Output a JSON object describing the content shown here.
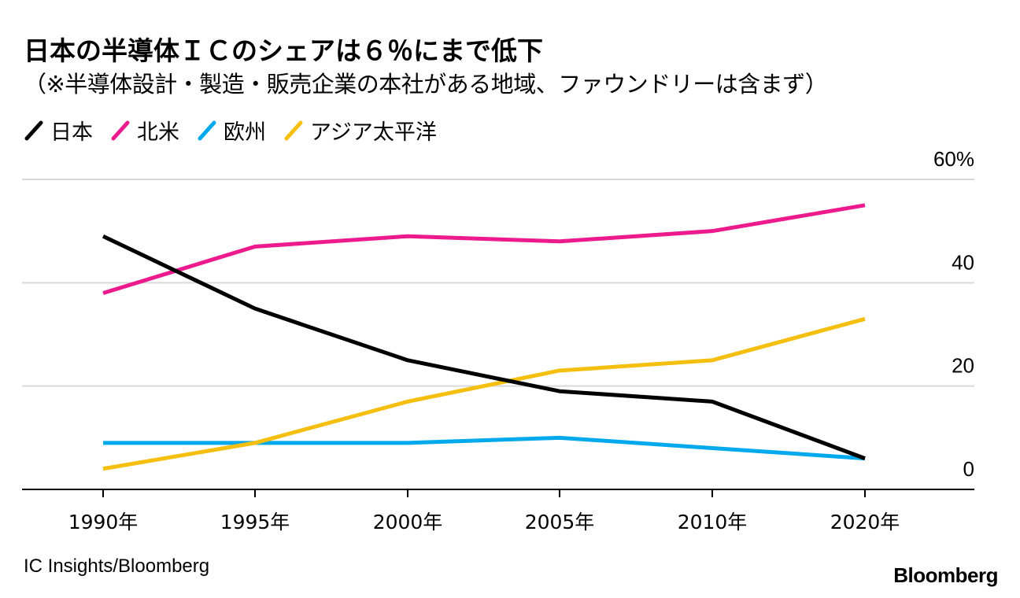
{
  "title": "日本の半導体ＩＣのシェアは６％にまで低下",
  "subtitle": "（※半導体設計・製造・販売企業の本社がある地域、ファウンドリーは含まず）",
  "source": "IC Insights/Bloomberg",
  "logo": "Bloomberg",
  "chart_data": {
    "type": "line",
    "title": "日本の半導体ＩＣのシェアは６％にまで低下",
    "subtitle": "（※半導体設計・製造・販売企業の本社がある地域、ファウンドリーは含まず）",
    "categories": [
      "1990年",
      "1995年",
      "2000年",
      "2005年",
      "2010年",
      "2020年"
    ],
    "ylim": [
      0,
      60
    ],
    "yticks": [
      0,
      20,
      40,
      60
    ],
    "ytick_labels": [
      "0",
      "20",
      "40",
      "60%"
    ],
    "y_axis_side": "right",
    "grid": true,
    "legend_position": "top-left",
    "series": [
      {
        "name": "日本",
        "color": "#000000",
        "values": [
          49,
          35,
          25,
          19,
          17,
          6
        ]
      },
      {
        "name": "北米",
        "color": "#ec1a8c",
        "values": [
          38,
          47,
          49,
          48,
          50,
          55
        ]
      },
      {
        "name": "欧州",
        "color": "#00a8ec",
        "values": [
          9,
          9,
          9,
          10,
          8,
          6
        ]
      },
      {
        "name": "アジア太平洋",
        "color": "#f5bf10",
        "values": [
          4,
          9,
          17,
          23,
          25,
          33
        ]
      }
    ]
  }
}
